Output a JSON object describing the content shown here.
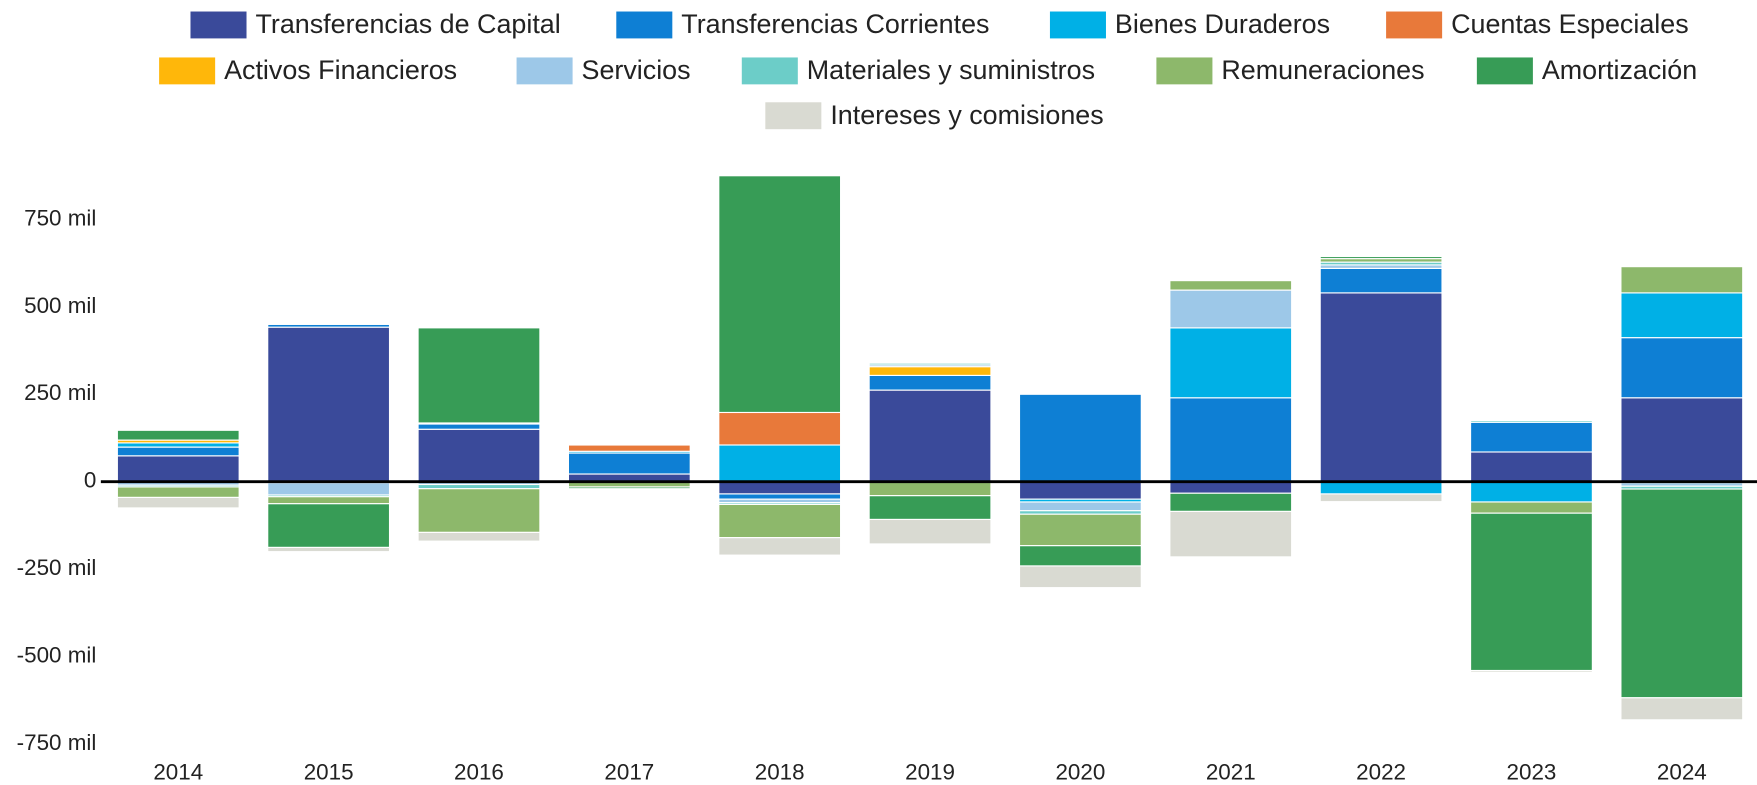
{
  "chart_data": {
    "type": "stacked_bar",
    "categories": [
      "2014",
      "2015",
      "2016",
      "2017",
      "2018",
      "2019",
      "2020",
      "2021",
      "2022",
      "2023",
      "2024"
    ],
    "ylim": [
      -780000,
      880000
    ],
    "yticks": [
      {
        "value": -750000,
        "label": "-750 mil"
      },
      {
        "value": -500000,
        "label": "-500 mil"
      },
      {
        "value": -250000,
        "label": "-250 mil"
      },
      0,
      {
        "value": 250000,
        "label": "250 mil"
      },
      {
        "value": 500000,
        "label": "500 mil"
      },
      {
        "value": 750000,
        "label": "750 mil"
      }
    ],
    "series": [
      {
        "name": "Transferencias de Capital",
        "color": "#3a4a9a",
        "values": [
          74000,
          442000,
          150000,
          22000,
          -35000,
          262000,
          -50000,
          -33000,
          540000,
          85000,
          240000
        ]
      },
      {
        "name": "Transferencias Corrientes",
        "color": "#0e7fd4",
        "values": [
          25000,
          8000,
          15000,
          60000,
          -15000,
          42000,
          250000,
          240000,
          70000,
          85000,
          172000
        ]
      },
      {
        "name": "Bienes Duraderos",
        "color": "#00b0e6",
        "values": [
          12000,
          3000,
          3000,
          5000,
          105000,
          0,
          -8000,
          200000,
          -35000,
          -58000,
          128000
        ]
      },
      {
        "name": "Cuentas Especiales",
        "color": "#e8793a",
        "values": [
          0,
          -3000,
          0,
          18000,
          93000,
          0,
          0,
          0,
          0,
          0,
          -3000
        ]
      },
      {
        "name": "Activos Financieros",
        "color": "#ffb70a",
        "values": [
          8000,
          0,
          0,
          3000,
          0,
          25000,
          0,
          0,
          0,
          0,
          0
        ]
      },
      {
        "name": "Servicios",
        "color": "#9dc8e8",
        "values": [
          -10000,
          -35000,
          -8000,
          0,
          -10000,
          5000,
          -25000,
          108000,
          10000,
          0,
          -10000
        ]
      },
      {
        "name": "Materiales y suministros",
        "color": "#6ccdc8",
        "values": [
          -5000,
          -5000,
          -12000,
          0,
          -5000,
          5000,
          -10000,
          0,
          8000,
          5000,
          -8000
        ]
      },
      {
        "name": "Remuneraciones",
        "color": "#8db86b",
        "values": [
          -30000,
          -20000,
          -125000,
          -15000,
          -95000,
          -40000,
          -90000,
          27000,
          10000,
          -32000,
          75000
        ]
      },
      {
        "name": "Amortización",
        "color": "#379c56",
        "values": [
          28000,
          -125000,
          272000,
          -5000,
          677000,
          -68000,
          -58000,
          -52000,
          6000,
          -450000,
          -597000
        ]
      },
      {
        "name": "Intereses y comisiones",
        "color": "#d9dad2",
        "values": [
          -30000,
          -12000,
          -25000,
          0,
          -50000,
          -70000,
          -62000,
          -130000,
          -22000,
          -5000,
          -63000
        ]
      }
    ]
  }
}
